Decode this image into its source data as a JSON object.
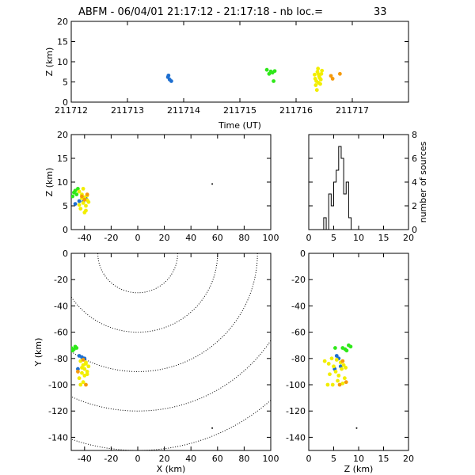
{
  "title": {
    "station": "ABFM",
    "text": "ABFM - 06/04/01 21:17:12 - 21:17:18 - nb loc.=",
    "count": "33"
  },
  "colors": {
    "blue": "#1e6fd0",
    "green": "#2fe81a",
    "yellow": "#f2ee00",
    "orange": "#f59a0b",
    "black": "#000000"
  },
  "chart_data": [
    {
      "id": "time-height",
      "type": "scatter",
      "xlabel": "Time (UT)",
      "ylabel": "Z (km)",
      "xlim": [
        211712,
        211718
      ],
      "ylim": [
        0,
        20
      ],
      "xticks": [
        211712,
        211713,
        211714,
        211715,
        211716,
        211717
      ],
      "yticks": [
        0,
        5,
        10,
        15,
        20
      ],
      "xtick_labels": [
        "211712",
        "211713",
        "211714",
        "211715",
        "211716",
        "211717"
      ],
      "ytick_labels": [
        "0",
        "5",
        "10",
        "15",
        "20"
      ],
      "series": [
        {
          "color": "blue",
          "x": [
            211713.72,
            211713.75,
            211713.78,
            211713.73
          ],
          "y": [
            6.2,
            5.6,
            5.2,
            6.6
          ]
        },
        {
          "color": "green",
          "x": [
            211715.48,
            211715.55,
            211715.58,
            211715.62,
            211715.6,
            211715.52
          ],
          "y": [
            8.0,
            7.6,
            7.3,
            7.7,
            5.2,
            7.0
          ]
        },
        {
          "color": "yellow",
          "x": [
            211716.33,
            211716.36,
            211716.38,
            211716.4,
            211716.42,
            211716.44,
            211716.35,
            211716.39,
            211716.45,
            211716.37,
            211716.41,
            211716.43,
            211716.34,
            211716.46,
            211716.4
          ],
          "y": [
            6.8,
            5.2,
            7.5,
            4.8,
            6.0,
            5.6,
            4.2,
            8.3,
            7.0,
            3.0,
            6.4,
            4.5,
            5.8,
            7.8,
            6.9
          ]
        },
        {
          "color": "orange",
          "x": [
            211716.62,
            211716.65,
            211716.78
          ],
          "y": [
            6.5,
            5.8,
            7.0
          ]
        }
      ]
    },
    {
      "id": "x-height",
      "type": "scatter",
      "xlabel": "",
      "ylabel": "Z (km)",
      "xlim": [
        -50,
        100
      ],
      "ylim": [
        0,
        20
      ],
      "xticks": [
        -40,
        -20,
        0,
        20,
        40,
        60,
        80,
        100
      ],
      "yticks": [
        0,
        5,
        10,
        15,
        20
      ],
      "xtick_labels": [
        "-40",
        "-20",
        "0",
        "20",
        "40",
        "60",
        "80",
        "100"
      ],
      "ytick_labels": [
        "0",
        "5",
        "10",
        "15",
        "20"
      ],
      "series": [
        {
          "color": "green",
          "x": [
            -48,
            -47,
            -46,
            -49,
            -45
          ],
          "y": [
            7.8,
            8.2,
            7.4,
            7.0,
            8.6
          ]
        },
        {
          "color": "blue",
          "x": [
            -47,
            -44,
            -41,
            -39
          ],
          "y": [
            5.4,
            6.0,
            5.8,
            6.5
          ]
        },
        {
          "color": "yellow",
          "x": [
            -44,
            -42,
            -40,
            -38,
            -41,
            -39,
            -43,
            -37,
            -40,
            -42,
            -38,
            -44,
            -39,
            -41
          ],
          "y": [
            8.0,
            7.4,
            6.8,
            6.2,
            5.6,
            5.0,
            4.4,
            5.8,
            3.6,
            6.6,
            7.2,
            5.2,
            4.0,
            8.6
          ]
        },
        {
          "color": "orange",
          "x": [
            -42,
            -40,
            -38
          ],
          "y": [
            7.0,
            6.3,
            7.4
          ]
        },
        {
          "color": "black",
          "x": [
            56
          ],
          "y": [
            9.6
          ]
        }
      ]
    },
    {
      "id": "histogram",
      "type": "bar",
      "xlabel": "",
      "ylabel": "number of sources",
      "xlim": [
        0,
        20
      ],
      "ylim": [
        0,
        8
      ],
      "xticks": [
        0,
        5,
        10,
        15,
        20
      ],
      "yticks": [
        0,
        2,
        4,
        6,
        8
      ],
      "xtick_labels": [
        "0",
        "5",
        "10",
        "15",
        "20"
      ],
      "ytick_labels": [
        "0",
        "2",
        "4",
        "6",
        "8"
      ],
      "bin_edges": [
        3.0,
        3.5,
        4.0,
        4.5,
        5.0,
        5.5,
        6.0,
        6.5,
        7.0,
        7.5,
        8.0,
        8.5,
        9.0
      ],
      "values": [
        1,
        0,
        3,
        2,
        4,
        5,
        7,
        6,
        3,
        4,
        1,
        0
      ]
    },
    {
      "id": "plan-view",
      "type": "scatter",
      "xlabel": "X (km)",
      "ylabel": "Y (km)",
      "xlim": [
        -50,
        100
      ],
      "ylim": [
        -150,
        0
      ],
      "xticks": [
        -40,
        -20,
        0,
        20,
        40,
        60,
        80,
        100
      ],
      "yticks": [
        0,
        -20,
        -40,
        -60,
        -80,
        -100,
        -120,
        -140
      ],
      "xtick_labels": [
        "-40",
        "-20",
        "0",
        "20",
        "40",
        "60",
        "80",
        "100"
      ],
      "ytick_labels": [
        "0",
        "-20",
        "-40",
        "-60",
        "-80",
        "-100",
        "-120",
        "-140"
      ],
      "range_rings_km": [
        30,
        60,
        90,
        120,
        150
      ],
      "series": [
        {
          "color": "green",
          "x": [
            -50,
            -48,
            -47,
            -49,
            -46
          ],
          "y": [
            -72,
            -73,
            -71,
            -74,
            -72
          ]
        },
        {
          "color": "blue",
          "x": [
            -44,
            -42,
            -45,
            -40
          ],
          "y": [
            -78,
            -79,
            -88,
            -80
          ]
        },
        {
          "color": "yellow",
          "x": [
            -43,
            -41,
            -40,
            -39,
            -42,
            -38,
            -44,
            -40,
            -37,
            -41,
            -39,
            -43,
            -38,
            -42
          ],
          "y": [
            -82,
            -85,
            -88,
            -84,
            -91,
            -90,
            -95,
            -93,
            -86,
            -98,
            -83,
            -100,
            -92,
            -87
          ]
        },
        {
          "color": "orange",
          "x": [
            -41,
            -39,
            -45
          ],
          "y": [
            -81,
            -100,
            -90
          ]
        },
        {
          "color": "black",
          "x": [
            56
          ],
          "y": [
            -133
          ]
        }
      ]
    },
    {
      "id": "height-y",
      "type": "scatter",
      "xlabel": "Z (km)",
      "ylabel": "",
      "xlim": [
        0,
        20
      ],
      "ylim": [
        -150,
        0
      ],
      "xticks": [
        0,
        5,
        10,
        15,
        20
      ],
      "yticks": [
        0,
        -20,
        -40,
        -60,
        -80,
        -100,
        -120,
        -140
      ],
      "xtick_labels": [
        "0",
        "5",
        "10",
        "15",
        "20"
      ],
      "ytick_labels": [
        "0",
        "-20",
        "-40",
        "-60",
        "-80",
        "-100",
        "-120",
        "-140"
      ],
      "series": [
        {
          "color": "green",
          "x": [
            5.3,
            6.8,
            7.3,
            8.0,
            8.4,
            7.6
          ],
          "y": [
            -72,
            -72,
            -73,
            -70,
            -71,
            -74
          ]
        },
        {
          "color": "blue",
          "x": [
            5.6,
            6.0,
            5.2,
            6.4
          ],
          "y": [
            -78,
            -80,
            -88,
            -86
          ]
        },
        {
          "color": "yellow",
          "x": [
            3.2,
            4.0,
            4.6,
            5.0,
            5.4,
            6.0,
            6.6,
            7.0,
            7.2,
            4.8,
            5.8,
            6.4,
            3.8,
            6.8,
            7.4,
            5.6,
            4.2
          ],
          "y": [
            -82,
            -84,
            -80,
            -86,
            -90,
            -93,
            -88,
            -85,
            -95,
            -100,
            -97,
            -83,
            -100,
            -99,
            -87,
            -81,
            -92
          ]
        },
        {
          "color": "orange",
          "x": [
            6.2,
            6.8,
            7.5
          ],
          "y": [
            -100,
            -82,
            -98
          ]
        },
        {
          "color": "black",
          "x": [
            9.6
          ],
          "y": [
            -133
          ]
        }
      ]
    }
  ]
}
